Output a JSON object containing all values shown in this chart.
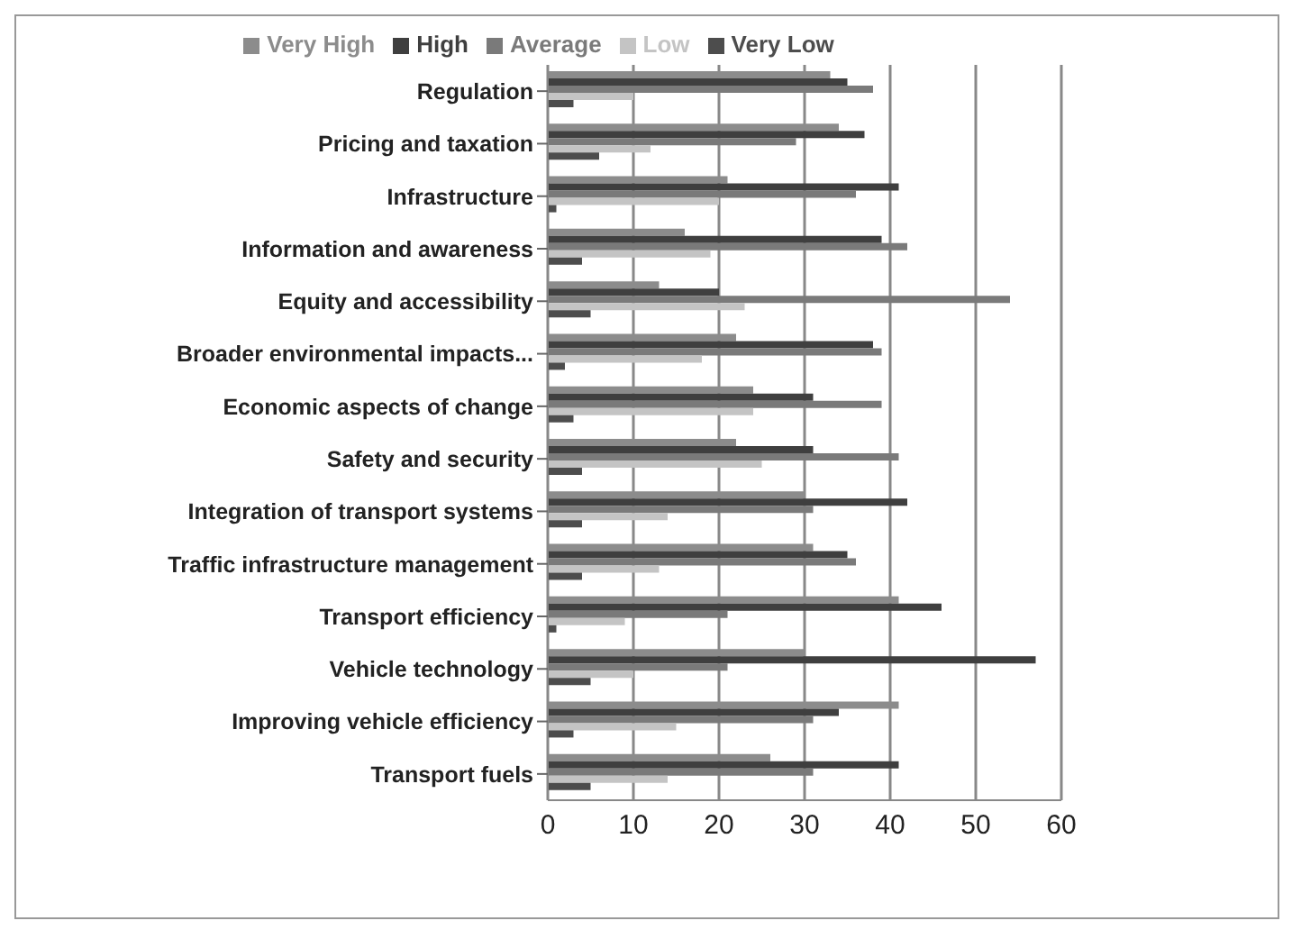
{
  "chart_data": {
    "type": "bar",
    "orientation": "horizontal",
    "categories": [
      "Regulation",
      "Pricing and taxation",
      "Infrastructure",
      "Information and awareness",
      "Equity and accessibility",
      "Broader environmental impacts...",
      "Economic aspects of change",
      "Safety and security",
      "Integration of transport systems",
      "Traffic infrastructure management",
      "Transport efficiency",
      "Vehicle technology",
      "Improving vehicle efficiency",
      "Transport fuels"
    ],
    "series": [
      {
        "name": "Very High",
        "color": "#8c8c8c",
        "values": [
          33,
          34,
          21,
          16,
          13,
          22,
          24,
          22,
          30,
          31,
          41,
          30,
          41,
          26
        ]
      },
      {
        "name": "High",
        "color": "#3f3f3f",
        "values": [
          35,
          37,
          41,
          39,
          20,
          38,
          31,
          31,
          42,
          35,
          46,
          57,
          34,
          41
        ]
      },
      {
        "name": "Average",
        "color": "#7a7a7a",
        "values": [
          38,
          29,
          36,
          42,
          54,
          39,
          39,
          41,
          31,
          36,
          21,
          21,
          31,
          31
        ]
      },
      {
        "name": "Low",
        "color": "#c4c4c4",
        "values": [
          10,
          12,
          20,
          19,
          23,
          18,
          24,
          25,
          14,
          13,
          9,
          10,
          15,
          14
        ]
      },
      {
        "name": "Very Low",
        "color": "#4d4d4d",
        "values": [
          3,
          6,
          1,
          4,
          5,
          2,
          3,
          4,
          4,
          4,
          1,
          5,
          3,
          5
        ]
      }
    ],
    "xlim": [
      0,
      60
    ],
    "xticks": [
      0,
      10,
      20,
      30,
      40,
      50,
      60
    ],
    "grid": "x",
    "legend": "top"
  }
}
